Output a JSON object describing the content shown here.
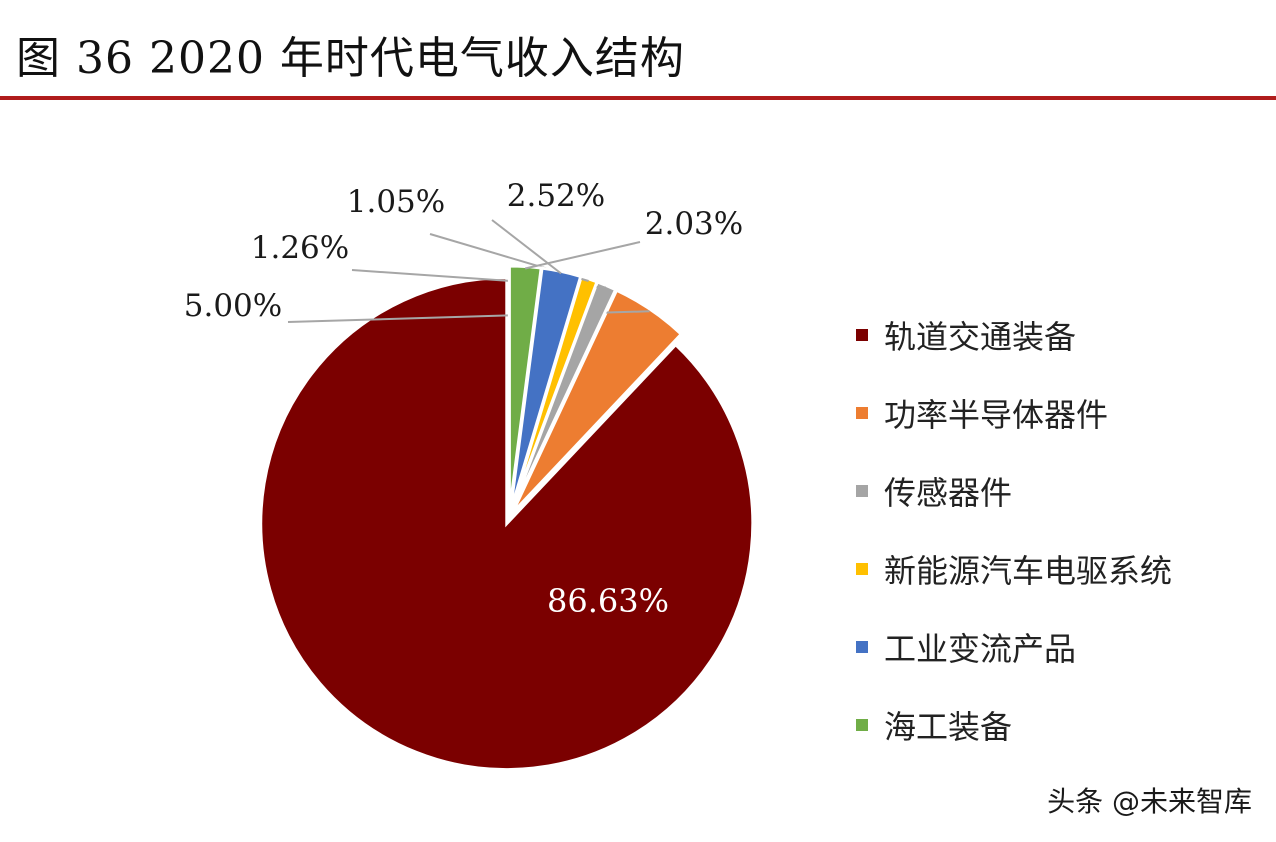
{
  "header": {
    "title": "图  36 2020 年时代电气收入结构",
    "rule_color": "#b01c1c"
  },
  "chart_data": {
    "type": "pie",
    "start_angle_deg": 0,
    "direction": "clockwise-from-top",
    "legend_position": "right",
    "slices": [
      {
        "label": "轨道交通装备",
        "value": 86.63,
        "display": "86.63%",
        "color": "#7b0000"
      },
      {
        "label": "功率半导体器件",
        "value": 5.0,
        "display": "5.00%",
        "color": "#ed7d31"
      },
      {
        "label": "传感器件",
        "value": 1.26,
        "display": "1.26%",
        "color": "#a5a5a5"
      },
      {
        "label": "新能源汽车电驱系统",
        "value": 1.05,
        "display": "1.05%",
        "color": "#ffc000"
      },
      {
        "label": "工业变流产品",
        "value": 2.52,
        "display": "2.52%",
        "color": "#4472c4"
      },
      {
        "label": "海工装备",
        "value": 2.03,
        "display": "2.03%",
        "color": "#70ad47"
      }
    ]
  },
  "watermark": "头条 @未来智库"
}
